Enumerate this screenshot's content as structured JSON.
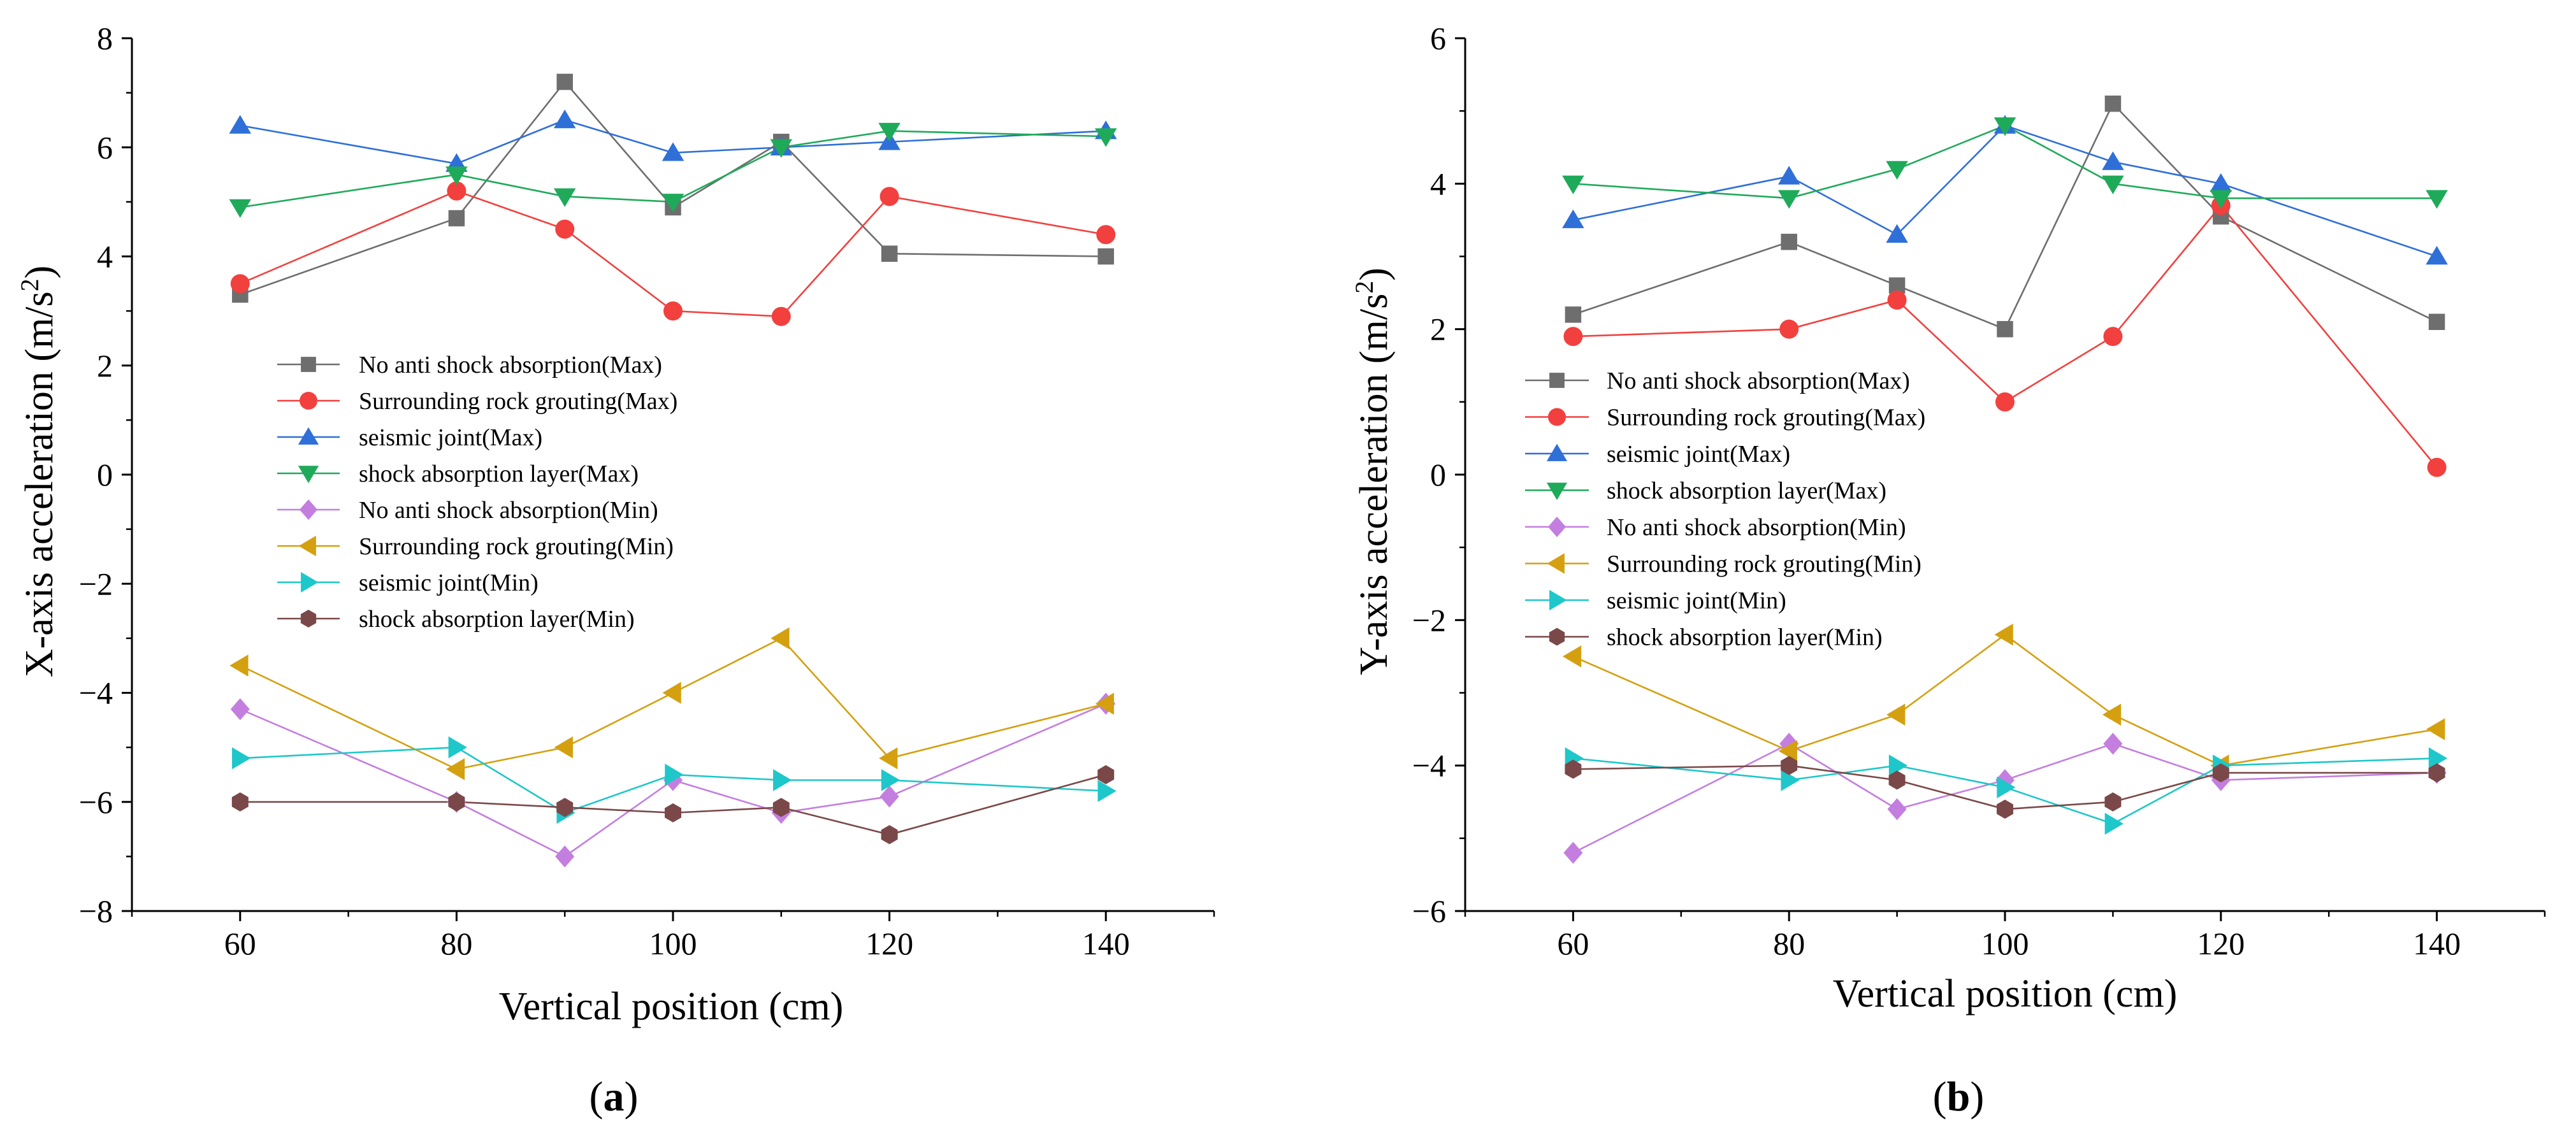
{
  "figure_labels": {
    "panel_a": {
      "open": "(",
      "letter": "a",
      "close": ")"
    },
    "panel_b": {
      "open": "(",
      "letter": "b",
      "close": ")"
    }
  },
  "series_styles": [
    {
      "color": "#6e6e6e",
      "marker": "square"
    },
    {
      "color": "#f2403e",
      "marker": "circle"
    },
    {
      "color": "#2f6fd8",
      "marker": "triangle-up"
    },
    {
      "color": "#1faa5a",
      "marker": "triangle-down"
    },
    {
      "color": "#c47ee0",
      "marker": "diamond"
    },
    {
      "color": "#d4a00f",
      "marker": "triangle-left"
    },
    {
      "color": "#1ec7c9",
      "marker": "triangle-right"
    },
    {
      "color": "#7a4848",
      "marker": "hexagon"
    }
  ],
  "chart_data": [
    {
      "type": "line",
      "panel": "a",
      "xlabel": "Vertical position (cm)",
      "ylabel_prefix": "X-axis acceleration (m/s",
      "ylabel_sup": "2",
      "ylabel_suffix": ")",
      "xlim": [
        50,
        150
      ],
      "ylim": [
        -8,
        8
      ],
      "xticks": [
        60,
        80,
        100,
        120,
        140
      ],
      "yticks": [
        -8,
        -6,
        -4,
        -2,
        0,
        2,
        4,
        6,
        8
      ],
      "xtick_labels": [
        "60",
        "80",
        "100",
        "120",
        "140"
      ],
      "ytick_labels": [
        "−8",
        "−6",
        "−4",
        "−2",
        "0",
        "2",
        "4",
        "6",
        "8"
      ],
      "legend_position": "middle-left",
      "x": [
        60,
        80,
        90,
        100,
        110,
        120,
        140
      ],
      "series": [
        {
          "name": "No anti shock absorption(Max)",
          "values": [
            3.3,
            4.7,
            7.2,
            4.9,
            6.1,
            4.05,
            4.0
          ]
        },
        {
          "name": "Surrounding rock grouting(Max)",
          "values": [
            3.5,
            5.2,
            4.5,
            3.0,
            2.9,
            5.1,
            4.4
          ]
        },
        {
          "name": "seismic joint(Max)",
          "values": [
            6.4,
            5.7,
            6.5,
            5.9,
            6.0,
            6.1,
            6.3
          ]
        },
        {
          "name": "shock absorption layer(Max)",
          "values": [
            4.9,
            5.5,
            5.1,
            5.0,
            6.0,
            6.3,
            6.2
          ]
        },
        {
          "name": "No anti shock absorption(Min)",
          "values": [
            -4.3,
            -6.0,
            -7.0,
            -5.6,
            -6.2,
            -5.9,
            -4.2
          ]
        },
        {
          "name": "Surrounding rock grouting(Min)",
          "values": [
            -3.5,
            -5.4,
            -5.0,
            -4.0,
            -3.0,
            -5.2,
            -4.2
          ]
        },
        {
          "name": "seismic joint(Min)",
          "values": [
            -5.2,
            -5.0,
            -6.2,
            -5.5,
            -5.6,
            -5.6,
            -5.8
          ]
        },
        {
          "name": "shock absorption layer(Min)",
          "values": [
            -6.0,
            -6.0,
            -6.1,
            -6.2,
            -6.1,
            -6.6,
            -5.5
          ]
        }
      ]
    },
    {
      "type": "line",
      "panel": "b",
      "xlabel": "Vertical position (cm)",
      "ylabel_prefix": "Y-axis acceleration (m/s",
      "ylabel_sup": "2",
      "ylabel_suffix": ")",
      "xlim": [
        50,
        150
      ],
      "ylim": [
        -6,
        6
      ],
      "xticks": [
        60,
        80,
        100,
        120,
        140
      ],
      "yticks": [
        -6,
        -4,
        -2,
        0,
        2,
        4,
        6
      ],
      "xtick_labels": [
        "60",
        "80",
        "100",
        "120",
        "140"
      ],
      "ytick_labels": [
        "−6",
        "−4",
        "−2",
        "0",
        "2",
        "4",
        "6"
      ],
      "legend_position": "middle-left",
      "x": [
        60,
        80,
        90,
        100,
        110,
        120,
        140
      ],
      "series": [
        {
          "name": "No anti shock absorption(Max)",
          "values": [
            2.2,
            3.2,
            2.6,
            2.0,
            5.1,
            3.55,
            2.1
          ]
        },
        {
          "name": "Surrounding rock grouting(Max)",
          "values": [
            1.9,
            2.0,
            2.4,
            1.0,
            1.9,
            3.7,
            0.1
          ]
        },
        {
          "name": "seismic joint(Max)",
          "values": [
            3.5,
            4.1,
            3.3,
            4.8,
            4.3,
            4.0,
            3.0
          ]
        },
        {
          "name": "shock absorption layer(Max)",
          "values": [
            4.0,
            3.8,
            4.2,
            4.8,
            4.0,
            3.8,
            3.8
          ]
        },
        {
          "name": "No anti shock absorption(Min)",
          "values": [
            -5.2,
            -3.7,
            -4.6,
            -4.2,
            -3.7,
            -4.2,
            -4.1
          ]
        },
        {
          "name": "Surrounding rock grouting(Min)",
          "values": [
            -2.5,
            -3.8,
            -3.3,
            -2.2,
            -3.3,
            -4.0,
            -3.5
          ]
        },
        {
          "name": "seismic joint(Min)",
          "values": [
            -3.9,
            -4.2,
            -4.0,
            -4.3,
            -4.8,
            -4.0,
            -3.9
          ]
        },
        {
          "name": "shock absorption layer(Min)",
          "values": [
            -4.05,
            -4.0,
            -4.2,
            -4.6,
            -4.5,
            -4.1,
            -4.1
          ]
        }
      ]
    }
  ]
}
